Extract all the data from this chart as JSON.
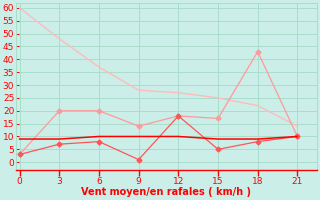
{
  "x": [
    0,
    3,
    6,
    9,
    12,
    15,
    18,
    21
  ],
  "line1": [
    60,
    48,
    37,
    28,
    27,
    25,
    22,
    14
  ],
  "line2": [
    3,
    20,
    20,
    14,
    18,
    17,
    43,
    10
  ],
  "line3": [
    3,
    7,
    8,
    1,
    18,
    5,
    8,
    10
  ],
  "line4": [
    9,
    9,
    10,
    10,
    10,
    9,
    9,
    10
  ],
  "line1_color": "#ffbbbb",
  "line2_color": "#ff9999",
  "line3_color": "#ff5555",
  "line4_color": "#ff0000",
  "bg_color": "#cceee8",
  "grid_color": "#aaddcc",
  "xlabel": "Vent moyen/en rafales ( km/h )",
  "xlabel_color": "#ff0000",
  "tick_color": "#ff0000",
  "axis_color": "#ff0000",
  "yticks": [
    0,
    5,
    10,
    15,
    20,
    25,
    30,
    35,
    40,
    45,
    50,
    55,
    60
  ],
  "xticks": [
    0,
    3,
    6,
    9,
    12,
    15,
    18,
    21
  ],
  "ylim": [
    -3,
    62
  ],
  "xlim": [
    -0.3,
    22.5
  ]
}
